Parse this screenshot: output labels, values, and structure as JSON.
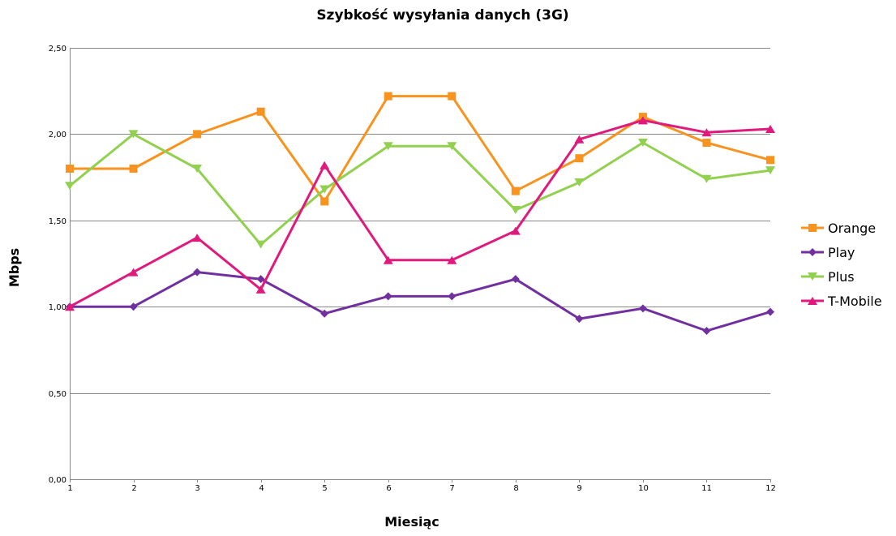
{
  "chart_data": {
    "type": "line",
    "title": "Szybkość wysyłania danych (3G)",
    "xlabel": "Miesiąc",
    "ylabel": "Mbps",
    "x": [
      "1",
      "2",
      "3",
      "4",
      "5",
      "6",
      "7",
      "8",
      "9",
      "10",
      "11",
      "12"
    ],
    "ylim": [
      0,
      2.5
    ],
    "yticks": [
      0,
      0.5,
      1.0,
      1.5,
      2.0,
      2.5
    ],
    "ytick_labels": [
      "0,00",
      "0,50",
      "1,00",
      "1,50",
      "2,00",
      "2,50"
    ],
    "grid": true,
    "legend_position": "right",
    "series": [
      {
        "name": "Orange",
        "color": "#f7931e",
        "marker": "square",
        "values": [
          1.8,
          1.8,
          2.0,
          2.13,
          1.61,
          2.22,
          2.22,
          1.67,
          1.86,
          2.1,
          1.95,
          1.85
        ]
      },
      {
        "name": "Play",
        "color": "#7030a0",
        "marker": "diamond",
        "values": [
          1.0,
          1.0,
          1.2,
          1.16,
          0.96,
          1.06,
          1.06,
          1.16,
          0.93,
          0.99,
          0.86,
          0.97
        ]
      },
      {
        "name": "Plus",
        "color": "#92d050",
        "marker": "triangle-down",
        "values": [
          1.7,
          2.0,
          1.8,
          1.36,
          1.68,
          1.93,
          1.93,
          1.56,
          1.72,
          1.95,
          1.74,
          1.79
        ]
      },
      {
        "name": "T-Mobile",
        "color": "#e0197d",
        "marker": "triangle-up",
        "values": [
          1.0,
          1.2,
          1.4,
          1.1,
          1.82,
          1.27,
          1.27,
          1.44,
          1.97,
          2.08,
          2.01,
          2.03
        ]
      }
    ]
  }
}
